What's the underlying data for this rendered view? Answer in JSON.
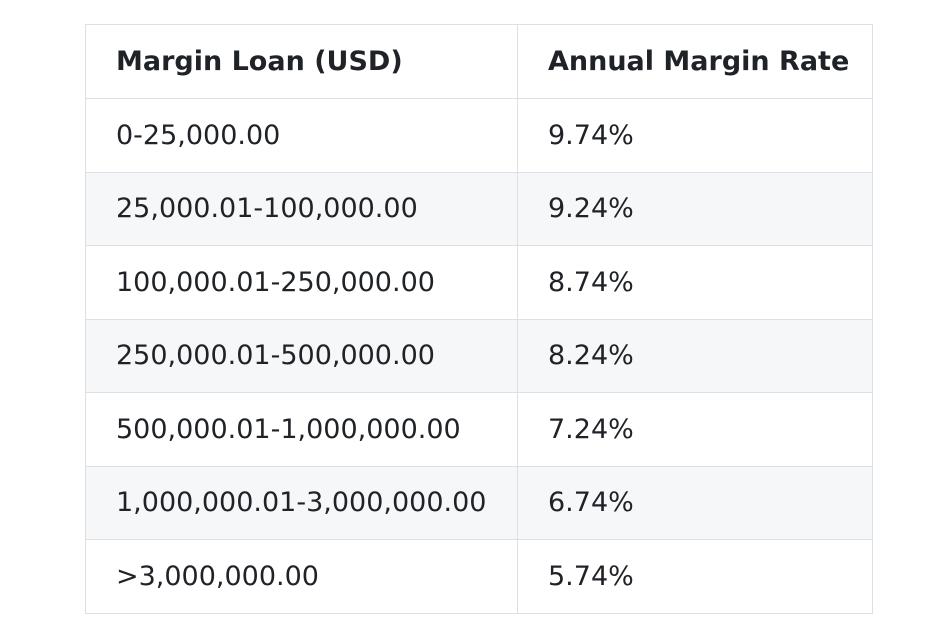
{
  "table": {
    "headers": [
      "Margin Loan (USD)",
      "Annual Margin Rate"
    ],
    "rows": [
      [
        "0-25,000.00",
        "9.74%"
      ],
      [
        "25,000.01-100,000.00",
        "9.24%"
      ],
      [
        "100,000.01-250,000.00",
        "8.74%"
      ],
      [
        "250,000.01-500,000.00",
        "8.24%"
      ],
      [
        "500,000.01-1,000,000.00",
        "7.24%"
      ],
      [
        "1,000,000.01-3,000,000.00",
        "6.74%"
      ],
      [
        ">3,000,000.00",
        "5.74%"
      ]
    ]
  }
}
